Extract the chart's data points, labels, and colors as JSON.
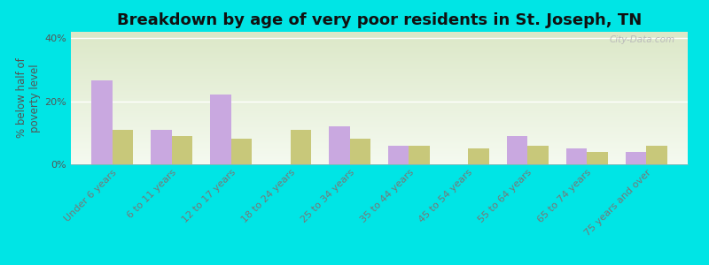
{
  "title": "Breakdown by age of very poor residents in St. Joseph, TN",
  "ylabel": "% below half of\npoverty level",
  "categories": [
    "Under 6 years",
    "6 to 11 years",
    "12 to 17 years",
    "18 to 24 years",
    "25 to 34 years",
    "35 to 44 years",
    "45 to 54 years",
    "55 to 64 years",
    "65 to 74 years",
    "75 years and over"
  ],
  "st_joseph": [
    26.5,
    11.0,
    22.0,
    0.0,
    12.0,
    6.0,
    0.0,
    9.0,
    5.0,
    4.0
  ],
  "tennessee": [
    11.0,
    9.0,
    8.0,
    11.0,
    8.0,
    6.0,
    5.0,
    6.0,
    4.0,
    6.0
  ],
  "st_joseph_color": "#c9a8e0",
  "tennessee_color": "#c8c87a",
  "background_outer": "#00e5e5",
  "background_plot_top": "#dce8c8",
  "background_plot_bottom": "#f5faf0",
  "ylim": [
    0,
    42
  ],
  "yticks": [
    0,
    20,
    40
  ],
  "ytick_labels": [
    "0%",
    "20%",
    "40%"
  ],
  "bar_width": 0.35,
  "title_fontsize": 13,
  "axis_label_fontsize": 8.5,
  "tick_fontsize": 8,
  "legend_fontsize": 10
}
